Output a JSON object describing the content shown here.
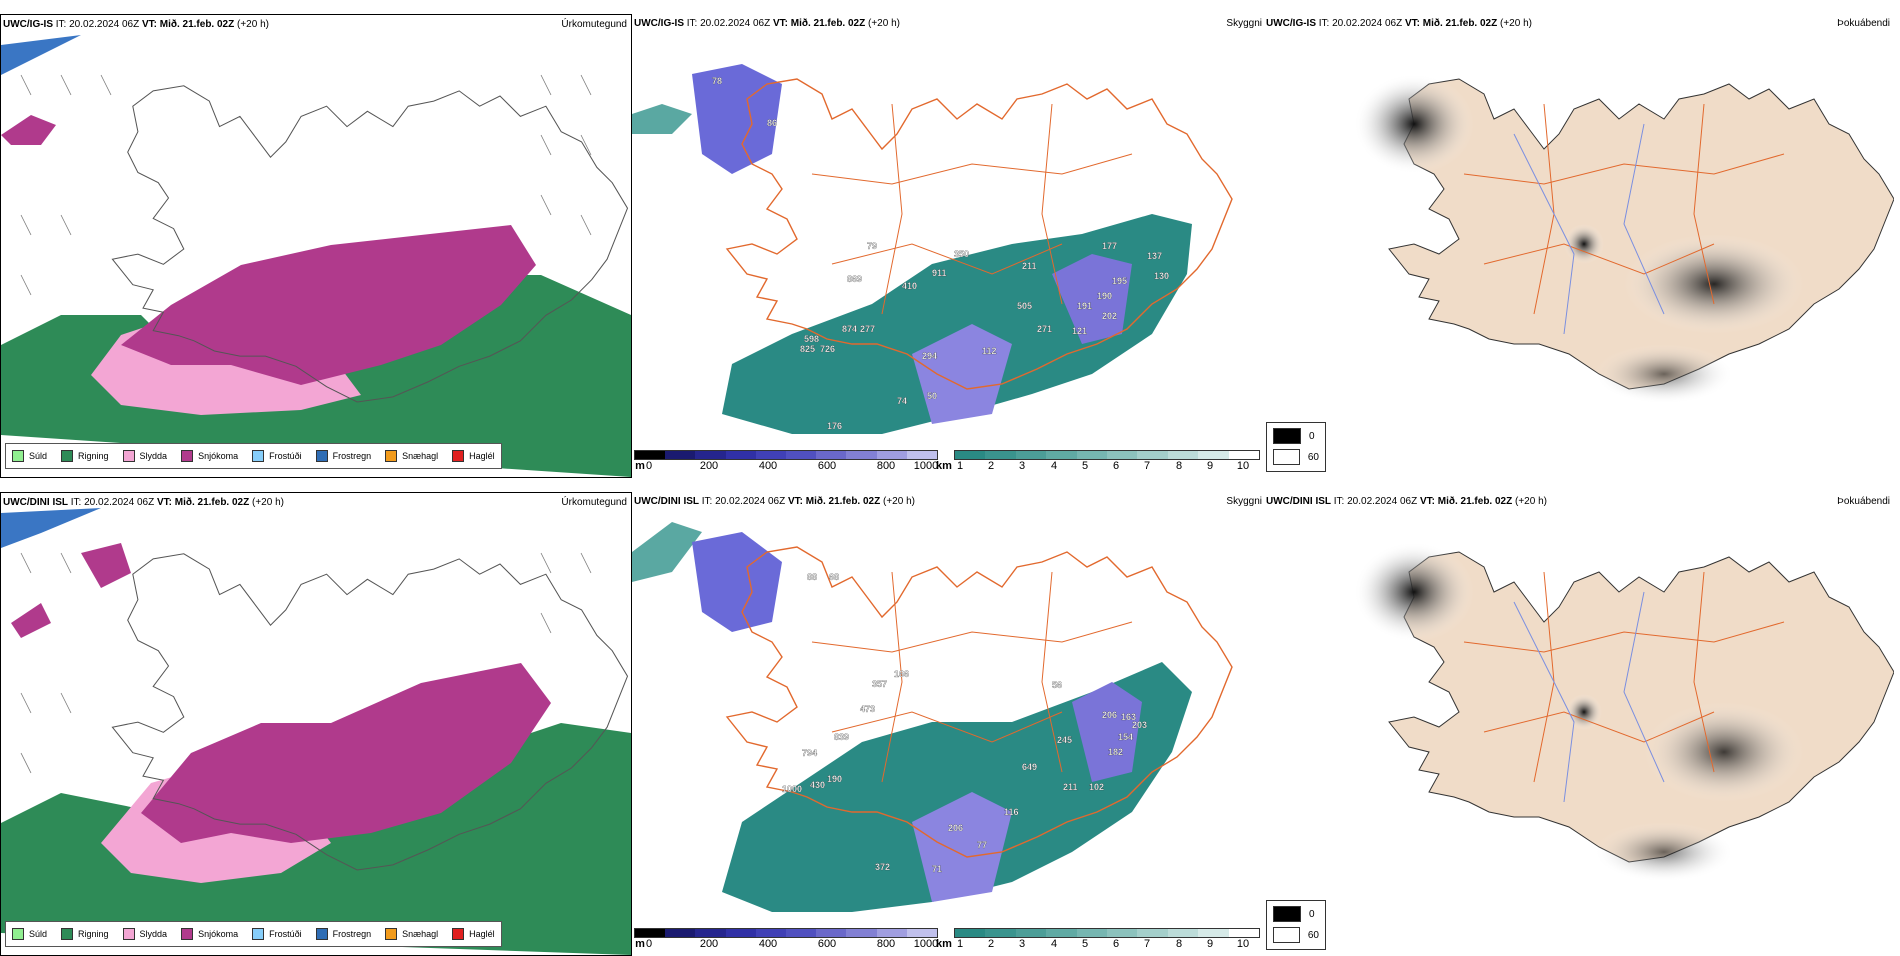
{
  "colors": {
    "sea_green": "#2e8b57",
    "snow": "#b03a8c",
    "sleet": "#f3a6d4",
    "teal": "#2a8a84",
    "tan": "#f0dcc8",
    "road": "#e2692e",
    "river": "#7b8fe0"
  },
  "panels": {
    "top": {
      "precip": {
        "model": "UWC/IG-IS",
        "it_label": "IT:",
        "it": "20.02.2024 06Z",
        "vt_label": "VT:",
        "vt": "Mið. 21.feb. 02Z",
        "lead": "(+20 h)",
        "title": "Úrkomutegund"
      },
      "vis": {
        "model": "UWC/IG-IS",
        "it_label": "IT:",
        "it": "20.02.2024 06Z",
        "vt_label": "VT:",
        "vt": "Mið. 21.feb. 02Z",
        "lead": "(+20 h)",
        "title": "Skyggni",
        "labels": [
          "78",
          "86",
          "79",
          "869",
          "410",
          "911",
          "350",
          "211",
          "177",
          "137",
          "195",
          "130",
          "190",
          "505",
          "191",
          "202",
          "121",
          "874",
          "277",
          "598",
          "825",
          "726",
          "271",
          "112",
          "294",
          "74",
          "50",
          "176"
        ]
      },
      "fog": {
        "model": "UWC/IG-IS",
        "it_label": "IT:",
        "it": "20.02.2024 06Z",
        "vt_label": "VT:",
        "vt": "Mið. 21.feb. 02Z",
        "lead": "(+20 h)",
        "title": "Þokuábendi"
      }
    },
    "bottom": {
      "precip": {
        "model": "UWC/DINI ISL",
        "it_label": "IT:",
        "it": "20.02.2024 06Z",
        "vt_label": "VT:",
        "vt": "Mið. 21.feb. 02Z",
        "lead": "(+20 h)",
        "title": "Úrkomutegund"
      },
      "vis": {
        "model": "UWC/DINI ISL",
        "it_label": "IT:",
        "it": "20.02.2024 06Z",
        "vt_label": "VT:",
        "vt": "Mið. 21.feb. 02Z",
        "lead": "(+20 h)",
        "title": "Skyggni",
        "labels": [
          "88",
          "68",
          "357",
          "166",
          "473",
          "839",
          "794",
          "190",
          "1000",
          "430",
          "56",
          "206",
          "163",
          "203",
          "245",
          "154",
          "182",
          "649",
          "211",
          "102",
          "116",
          "206",
          "77",
          "71",
          "372"
        ]
      },
      "fog": {
        "model": "UWC/DINI ISL",
        "it_label": "IT:",
        "it": "20.02.2024 06Z",
        "vt_label": "VT:",
        "vt": "Mið. 21.feb. 02Z",
        "lead": "(+20 h)",
        "title": "Þokuábendi"
      }
    }
  },
  "precip_legend": [
    {
      "label": "Súld",
      "color": "#90ee90"
    },
    {
      "label": "Rigning",
      "color": "#2e8b57"
    },
    {
      "label": "Slydda",
      "color": "#f3a6d4"
    },
    {
      "label": "Snjókoma",
      "color": "#b03a8c"
    },
    {
      "label": "Frostúði",
      "color": "#87cefa"
    },
    {
      "label": "Frostregn",
      "color": "#2f6db5"
    },
    {
      "label": "Snæhagl",
      "color": "#f29b1c"
    },
    {
      "label": "Haglél",
      "color": "#e02020"
    }
  ],
  "vis_cbar_m": {
    "unit": "m",
    "ticks": [
      "0",
      "200",
      "400",
      "600",
      "800",
      "1000"
    ]
  },
  "vis_cbar_km": {
    "unit": "km",
    "ticks": [
      "1",
      "2",
      "3",
      "4",
      "5",
      "6",
      "7",
      "8",
      "9",
      "10"
    ]
  },
  "fog_legend": [
    {
      "label": "0",
      "color": "#000000"
    },
    {
      "label": "60",
      "color": "#ffffff"
    }
  ]
}
